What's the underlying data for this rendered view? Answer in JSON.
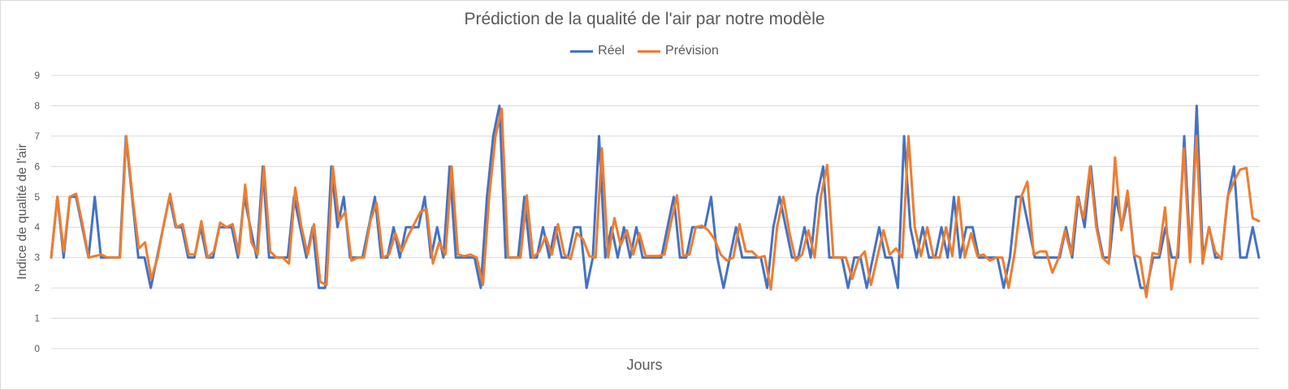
{
  "chart_data": {
    "type": "line",
    "title": "Prédiction de la qualité de l'air par notre modèle",
    "xlabel": "Jours",
    "ylabel": "Indice de qualité de l'air",
    "ylim": [
      0,
      9
    ],
    "yticks": [
      "0",
      "1",
      "2",
      "3",
      "4",
      "5",
      "6",
      "7",
      "8",
      "9"
    ],
    "grid": true,
    "legend_position": "top",
    "series": [
      {
        "name": "Réel",
        "color": "#4472c4",
        "values": [
          3,
          5,
          3,
          5,
          5,
          4,
          3,
          5,
          3,
          3,
          3,
          3,
          7,
          5,
          3,
          3,
          2,
          3,
          4,
          5,
          4,
          4,
          3,
          3,
          4,
          3,
          3,
          4,
          4,
          4,
          3,
          5,
          4,
          3,
          6,
          3,
          3,
          3,
          3,
          5,
          4,
          3,
          4,
          2,
          2,
          6,
          4,
          5,
          3,
          3,
          3,
          4,
          5,
          3,
          3,
          4,
          3,
          4,
          4,
          4,
          5,
          3,
          4,
          3,
          6,
          3,
          3,
          3,
          3,
          2,
          5,
          7,
          8,
          3,
          3,
          3,
          5,
          3,
          3,
          4,
          3,
          4,
          3,
          3,
          4,
          4,
          2,
          3,
          7,
          3,
          4,
          3,
          4,
          3,
          4,
          3,
          3,
          3,
          3,
          4,
          5,
          3,
          3,
          4,
          4,
          4,
          5,
          3,
          2,
          3,
          4,
          3,
          3,
          3,
          3,
          2,
          4,
          5,
          4,
          3,
          3,
          4,
          3,
          5,
          6,
          3,
          3,
          3,
          2,
          3,
          3,
          2,
          3,
          4,
          3,
          3,
          2,
          7,
          4,
          3,
          4,
          3,
          3,
          4,
          3,
          5,
          3,
          4,
          4,
          3,
          3,
          3,
          3,
          2,
          3,
          5,
          5,
          4,
          3,
          3,
          3,
          3,
          3,
          4,
          3,
          5,
          4,
          6,
          4,
          3,
          3,
          5,
          4,
          5,
          3,
          2,
          2,
          3,
          3,
          4,
          3,
          3,
          7,
          3,
          8,
          3,
          4,
          3,
          3,
          5,
          6,
          3,
          3,
          4,
          3
        ]
      },
      {
        "name": "Prévision",
        "color": "#ed7d31",
        "values": [
          3,
          5,
          3.2,
          5,
          5.1,
          4.1,
          3,
          3.05,
          3.1,
          3,
          3,
          3,
          7,
          5,
          3.3,
          3.5,
          2.3,
          3,
          4.1,
          5.1,
          4,
          4.1,
          3.1,
          3.1,
          4.2,
          3,
          3.2,
          4.15,
          4,
          4.1,
          3.1,
          5.4,
          3.5,
          3.1,
          6,
          3.2,
          3,
          3,
          2.8,
          5.3,
          4,
          3.1,
          4.1,
          2.2,
          2.1,
          6,
          4.2,
          4.5,
          2.9,
          3,
          3,
          4.2,
          4.8,
          3,
          3.1,
          3.8,
          3.2,
          3.7,
          4.1,
          4.5,
          4.6,
          2.8,
          3.5,
          3.1,
          6,
          3.1,
          3.05,
          3.1,
          3,
          2.1,
          5,
          7,
          7.9,
          3,
          3,
          3,
          5.05,
          3,
          3.2,
          3.7,
          3.1,
          4.1,
          3.1,
          2.95,
          3.8,
          3.6,
          3.05,
          3,
          6.6,
          3,
          4.3,
          3.4,
          3.9,
          3.1,
          3.8,
          3.05,
          3.05,
          3.05,
          3.1,
          4.1,
          5.05,
          3.05,
          3.1,
          4,
          4.05,
          3.9,
          3.6,
          3.1,
          2.9,
          3,
          4.1,
          3.2,
          3.2,
          3,
          3.05,
          1.95,
          4,
          5,
          3.8,
          2.9,
          3.1,
          3.9,
          3,
          5,
          6.05,
          3,
          3,
          3,
          2.3,
          2.95,
          3.2,
          2.1,
          3,
          3.9,
          3.1,
          3.3,
          3,
          7,
          4,
          3.05,
          4,
          3,
          3,
          4,
          3.05,
          5,
          3,
          3.8,
          3.05,
          3.1,
          2.9,
          3,
          3,
          2,
          3.2,
          5,
          5.5,
          3.1,
          3.2,
          3.2,
          2.5,
          3,
          3.9,
          3.1,
          5,
          4.3,
          6,
          4,
          3,
          2.8,
          6.3,
          3.9,
          5.2,
          3.1,
          3,
          1.7,
          3.15,
          3.1,
          4.65,
          1.95,
          3.2,
          6.6,
          2.85,
          7,
          2.8,
          4,
          3.2,
          2.95,
          5,
          5.5,
          5.9,
          5.95,
          4.3,
          4.2
        ]
      }
    ]
  }
}
